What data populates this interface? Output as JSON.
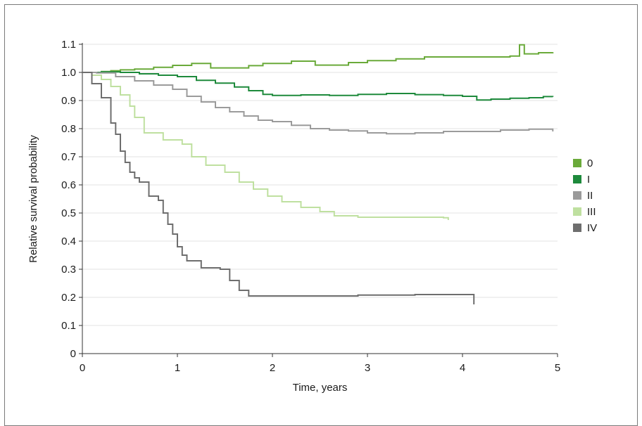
{
  "chart_data": {
    "type": "line",
    "step": true,
    "xlabel": "Time, years",
    "ylabel": "Relative survival probability",
    "xlim": [
      0,
      5
    ],
    "ylim": [
      0,
      1.1
    ],
    "xticks": [
      "0",
      "1",
      "2",
      "3",
      "4",
      "5"
    ],
    "yticks": [
      "0",
      "0.1",
      "0.2",
      "0.3",
      "0.4",
      "0.5",
      "0.6",
      "0.7",
      "0.8",
      "0.9",
      "1.0",
      "1.1"
    ],
    "grid": "horizontal",
    "legend_position": "right",
    "series": [
      {
        "name": "0",
        "color": "#6aaa3a",
        "x": [
          0,
          0.1,
          0.2,
          0.3,
          0.4,
          0.55,
          0.75,
          0.95,
          1.15,
          1.35,
          1.55,
          1.75,
          1.9,
          2.2,
          2.45,
          2.65,
          2.8,
          3.0,
          3.3,
          3.6,
          3.9,
          4.2,
          4.5,
          4.6,
          4.65,
          4.8,
          4.95
        ],
        "y": [
          1.0,
          1.0,
          1.003,
          1.006,
          1.009,
          1.012,
          1.018,
          1.025,
          1.032,
          1.016,
          1.016,
          1.024,
          1.032,
          1.04,
          1.026,
          1.026,
          1.035,
          1.042,
          1.048,
          1.055,
          1.055,
          1.055,
          1.058,
          1.098,
          1.066,
          1.07,
          1.072
        ]
      },
      {
        "name": "I",
        "color": "#1e8a3c",
        "x": [
          0,
          0.2,
          0.4,
          0.6,
          0.8,
          1.0,
          1.2,
          1.4,
          1.6,
          1.75,
          1.9,
          2.0,
          2.3,
          2.6,
          2.9,
          3.2,
          3.5,
          3.8,
          4.0,
          4.15,
          4.3,
          4.5,
          4.7,
          4.85,
          4.95
        ],
        "y": [
          1.0,
          1.002,
          1.0,
          0.995,
          0.99,
          0.985,
          0.972,
          0.962,
          0.948,
          0.935,
          0.922,
          0.918,
          0.92,
          0.918,
          0.922,
          0.925,
          0.921,
          0.918,
          0.915,
          0.902,
          0.905,
          0.908,
          0.91,
          0.914,
          0.913
        ]
      },
      {
        "name": "II",
        "color": "#9b9b9b",
        "x": [
          0,
          0.15,
          0.35,
          0.55,
          0.75,
          0.95,
          1.1,
          1.25,
          1.4,
          1.55,
          1.7,
          1.85,
          2.0,
          2.2,
          2.4,
          2.6,
          2.8,
          3.0,
          3.2,
          3.5,
          3.8,
          4.1,
          4.4,
          4.7,
          4.95
        ],
        "y": [
          1.0,
          0.998,
          0.985,
          0.97,
          0.955,
          0.94,
          0.915,
          0.895,
          0.875,
          0.86,
          0.845,
          0.83,
          0.825,
          0.812,
          0.8,
          0.795,
          0.792,
          0.785,
          0.782,
          0.785,
          0.79,
          0.79,
          0.795,
          0.798,
          0.79
        ]
      },
      {
        "name": "III",
        "color": "#bfe0a0",
        "x": [
          0,
          0.1,
          0.2,
          0.3,
          0.4,
          0.5,
          0.55,
          0.65,
          0.85,
          1.05,
          1.15,
          1.3,
          1.5,
          1.65,
          1.8,
          1.95,
          2.1,
          2.3,
          2.5,
          2.65,
          2.9,
          3.2,
          3.5,
          3.8,
          3.85
        ],
        "y": [
          1.0,
          0.99,
          0.975,
          0.95,
          0.92,
          0.88,
          0.84,
          0.785,
          0.76,
          0.745,
          0.7,
          0.67,
          0.645,
          0.61,
          0.585,
          0.56,
          0.54,
          0.52,
          0.505,
          0.49,
          0.485,
          0.485,
          0.485,
          0.483,
          0.475
        ]
      },
      {
        "name": "IV",
        "color": "#6e6e6e",
        "x": [
          0,
          0.1,
          0.2,
          0.3,
          0.35,
          0.4,
          0.45,
          0.5,
          0.55,
          0.6,
          0.7,
          0.8,
          0.85,
          0.9,
          0.95,
          1.0,
          1.05,
          1.1,
          1.25,
          1.45,
          1.55,
          1.65,
          1.75,
          1.9,
          2.5,
          2.9,
          3.5,
          4.0,
          4.1,
          4.12
        ],
        "y": [
          1.0,
          0.96,
          0.91,
          0.82,
          0.78,
          0.72,
          0.68,
          0.645,
          0.625,
          0.61,
          0.56,
          0.545,
          0.5,
          0.46,
          0.425,
          0.38,
          0.35,
          0.33,
          0.305,
          0.3,
          0.26,
          0.225,
          0.205,
          0.205,
          0.205,
          0.208,
          0.21,
          0.21,
          0.21,
          0.175
        ]
      }
    ]
  }
}
